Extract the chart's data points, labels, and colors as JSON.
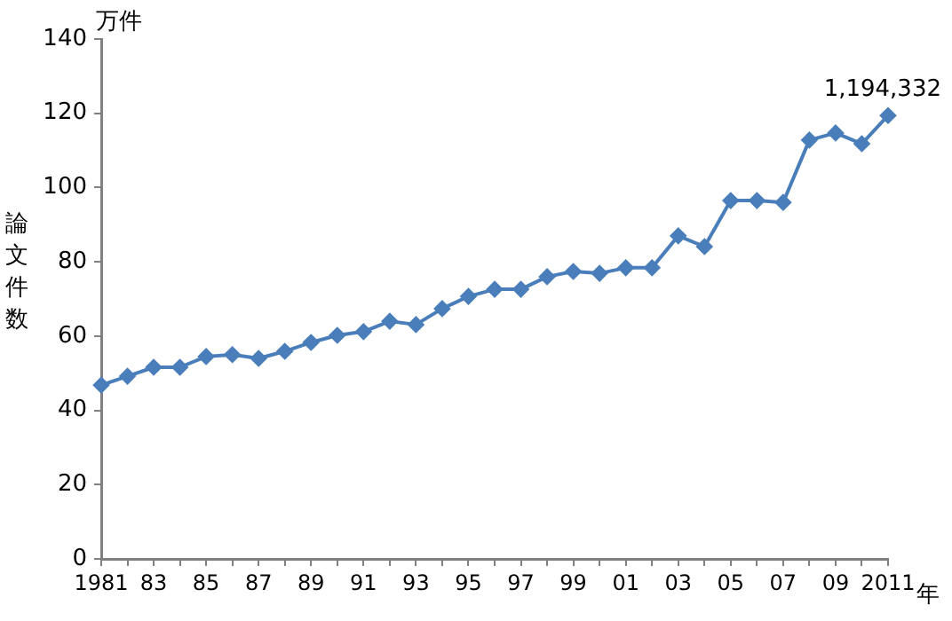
{
  "chart_data": {
    "type": "line",
    "xlabel": "年",
    "ylabel": "論文件数",
    "annotations": [
      "万件",
      {
        "text": "1,194,332",
        "x": "2011",
        "y": 119.4
      }
    ],
    "categories": [
      "1981",
      null,
      "83",
      null,
      "85",
      null,
      "87",
      null,
      "89",
      null,
      "91",
      null,
      "93",
      null,
      "95",
      null,
      "97",
      null,
      "99",
      null,
      "01",
      null,
      "03",
      null,
      "05",
      null,
      "07",
      null,
      "09",
      null,
      "2011"
    ],
    "series": [
      {
        "color": "#4a7ebb",
        "values": [
          46.8,
          49.2,
          51.6,
          51.6,
          54.5,
          55,
          54,
          55.9,
          58.3,
          60.2,
          61.2,
          64,
          63.1,
          67.4,
          70.7,
          72.6,
          72.6,
          76,
          77.4,
          76.9,
          78.4,
          78.4,
          87,
          84.1,
          96.5,
          96.5,
          96,
          112.8,
          114.7,
          111.8,
          119.4
        ]
      }
    ],
    "ylim": [
      0,
      140
    ],
    "yticks": [
      0,
      20,
      40,
      60,
      80,
      100,
      120,
      140
    ],
    "grid": false,
    "legend": false,
    "marker": "diamond",
    "line_style": "solid"
  }
}
